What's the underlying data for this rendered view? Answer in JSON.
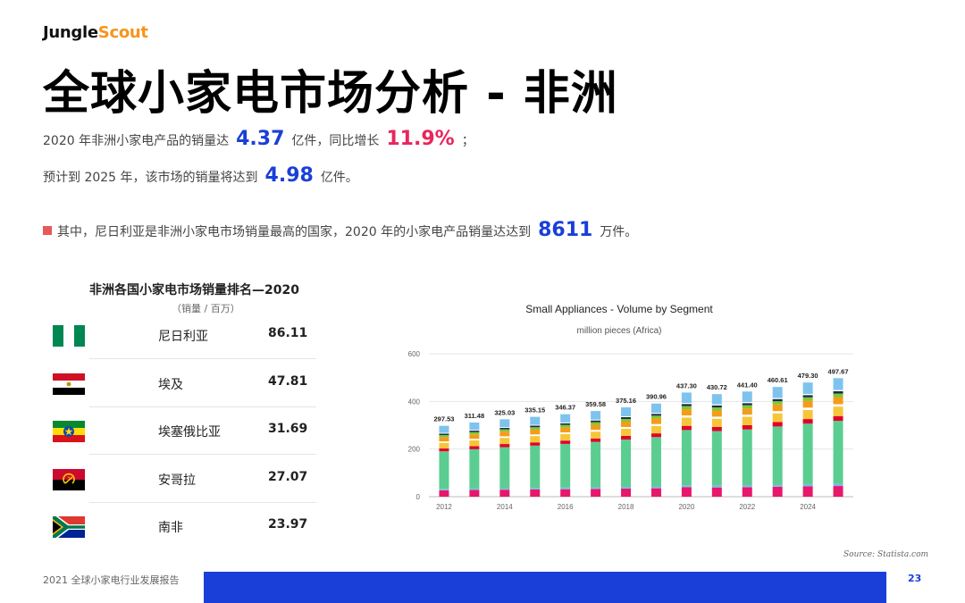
{
  "brand": {
    "part1": "Jungle",
    "part2": "Scout"
  },
  "title": "全球小家电市场分析 - 非洲",
  "line1": {
    "pre": "2020 年非洲小家电产品的销量达",
    "v1": "4.37",
    "mid": "亿件，同比增长",
    "v2": "11.9%",
    "post": "；"
  },
  "line2": {
    "pre": "预计到 2025 年，该市场的销量将达到",
    "v1": "4.98",
    "post": "亿件。"
  },
  "line3": {
    "pre": "其中，尼日利亚是非洲小家电市场销量最高的国家，2020 年的小家电产品销量达达到",
    "v1": "8611",
    "post": "万件。"
  },
  "ranking": {
    "title": "非洲各国小家电市场销量排名—2020",
    "subtitle": "（销量 / 百万）",
    "rows": [
      {
        "country": "尼日利亚",
        "value": "86.11",
        "flag": "nigeria-flag"
      },
      {
        "country": "埃及",
        "value": "47.81",
        "flag": "egypt-flag"
      },
      {
        "country": "埃塞俄比亚",
        "value": "31.69",
        "flag": "ethiopia-flag"
      },
      {
        "country": "安哥拉",
        "value": "27.07",
        "flag": "angola-flag"
      },
      {
        "country": "南非",
        "value": "23.97",
        "flag": "south-africa-flag"
      }
    ]
  },
  "chart_data": {
    "type": "bar",
    "title": "Small Appliances - Volume by Segment",
    "subtitle": "million pieces (Africa)",
    "x": [
      2012,
      2013,
      2014,
      2015,
      2016,
      2017,
      2018,
      2019,
      2020,
      2021,
      2022,
      2023,
      2024,
      2025
    ],
    "x_tick_labels": [
      "2012",
      "2014",
      "2016",
      "2018",
      "2020",
      "2022",
      "2024"
    ],
    "totals": [
      297.53,
      311.48,
      325.03,
      335.15,
      346.37,
      359.58,
      375.16,
      390.96,
      437.3,
      430.72,
      441.4,
      460.61,
      479.3,
      497.67
    ],
    "total_labels": [
      "297.53",
      "311.48",
      "325.03",
      "335.15",
      "346.37",
      "359.58",
      "375.16",
      "390.96",
      "437.30",
      "430.72",
      "441.40",
      "460.61",
      "479.30",
      "497.67"
    ],
    "ylim": [
      0,
      600
    ],
    "yticks": [
      0,
      200,
      400,
      600
    ],
    "stacked": true,
    "grid": true,
    "segment_fractions": [
      0.09,
      0.02,
      0.53,
      0.04,
      0.08,
      0.02,
      0.06,
      0.03,
      0.02,
      0.01,
      0.1
    ],
    "colors": [
      "#e8176b",
      "#7fb7e6",
      "#5ccd91",
      "#e2002a",
      "#f6c63a",
      "#ffffff",
      "#f39c1b",
      "#7ec832",
      "#1c2a4a",
      "#ffffff",
      "#7ec3ee"
    ]
  },
  "source": "Source: Statista.com",
  "footer": {
    "report": "2021 全球小家电行业发展报告",
    "page": "23"
  }
}
